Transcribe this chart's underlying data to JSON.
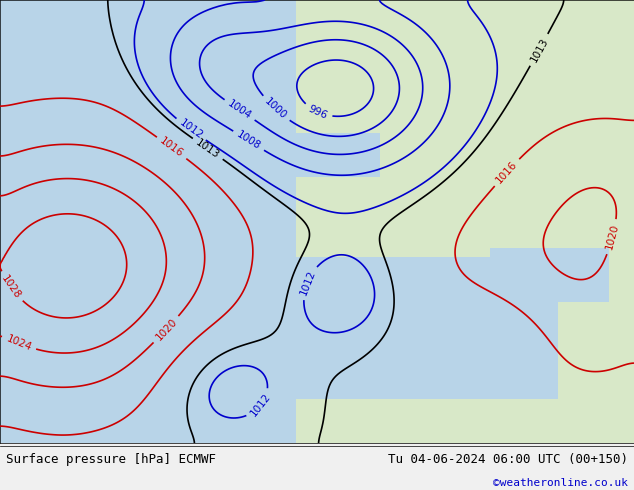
{
  "title_left": "Surface pressure [hPa] ECMWF",
  "title_right": "Tu 04-06-2024 06:00 UTC (00+150)",
  "copyright": "©weatheronline.co.uk",
  "bg_color": "#f0f0f0",
  "map_bg_ocean": "#b8d4e8",
  "map_bg_land_west": "#d8e8c8",
  "map_bg_land_east": "#c8e0b8",
  "footer_bg": "#e8e8e8",
  "footer_text_color": "#000000",
  "copyright_color": "#0000cc",
  "isobar_low_color": "#cc0000",
  "isobar_high_color": "#0000cc",
  "isobar_black_color": "#000000",
  "isobar_interval": 4,
  "contour_linewidth": 1.2,
  "label_fontsize": 7.5
}
